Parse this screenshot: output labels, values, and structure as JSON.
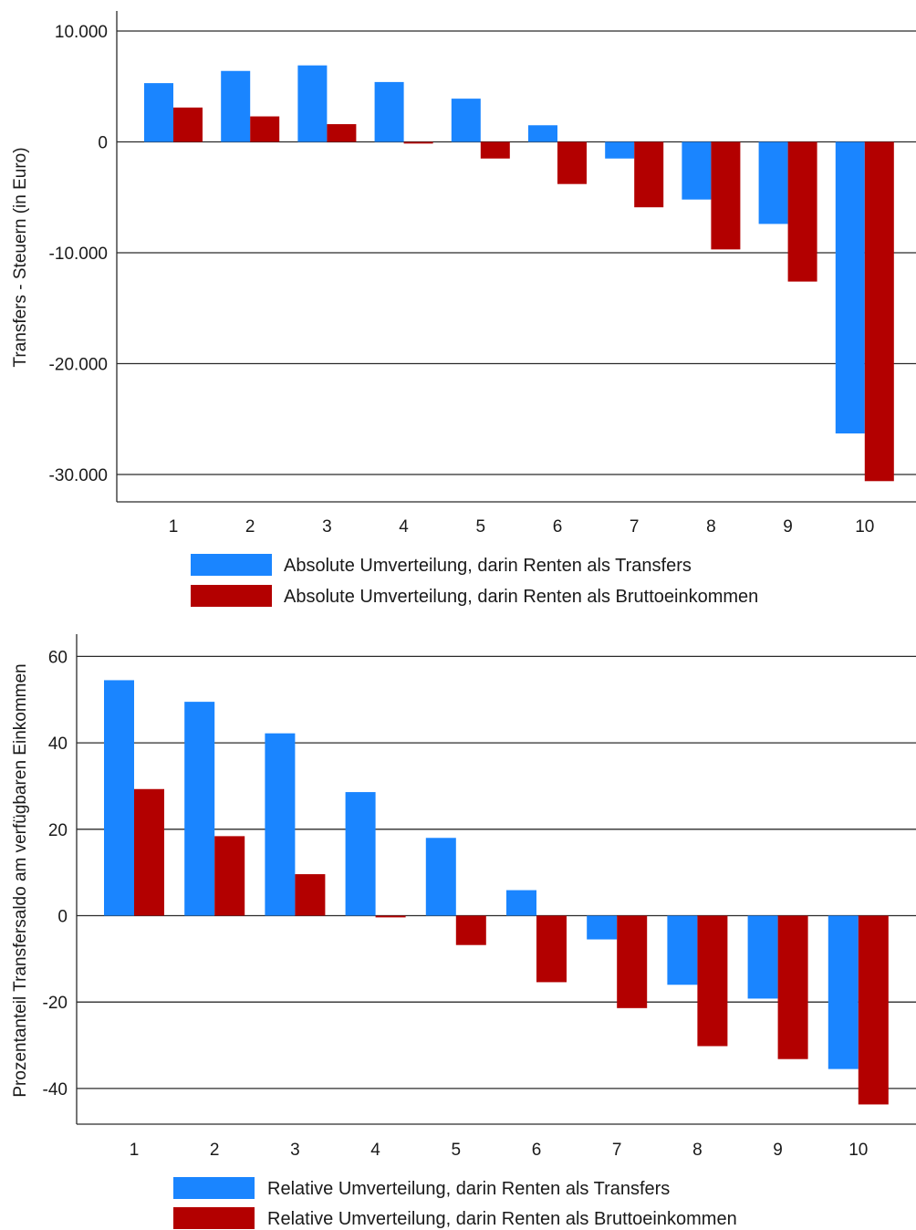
{
  "chart_data": [
    {
      "type": "bar",
      "ylabel": "Transfers - Steuern (in Euro)",
      "xlabel": "",
      "ylim": [
        -32500,
        11000
      ],
      "yticks": [
        10000,
        0,
        -10000,
        -20000,
        -30000
      ],
      "ytick_labels": [
        "10.000",
        "0",
        "-10.000",
        "-20.000",
        "-30.000"
      ],
      "grid": true,
      "legend_position": "bottom",
      "categories": [
        "1",
        "2",
        "3",
        "4",
        "5",
        "6",
        "7",
        "8",
        "9",
        "10"
      ],
      "series": [
        {
          "name": "Absolute Umverteilung, darin Renten als Transfers",
          "color": "#1a85ff",
          "values": [
            5300,
            6400,
            6900,
            5400,
            3900,
            1500,
            -1500,
            -5200,
            -7400,
            -26300
          ]
        },
        {
          "name": "Absolute Umverteilung, darin Renten als Bruttoeinkommen",
          "color": "#b30000",
          "values": [
            3100,
            2300,
            1600,
            -150,
            -1500,
            -3800,
            -5900,
            -9700,
            -12600,
            -30600
          ]
        }
      ]
    },
    {
      "type": "bar",
      "ylabel": "Prozentanteil Transfersaldo am verfügbaren Einkommen",
      "xlabel": "",
      "ylim": [
        -48,
        66
      ],
      "yticks": [
        60,
        40,
        20,
        0,
        -20,
        -40
      ],
      "ytick_labels": [
        "60",
        "40",
        "20",
        "0",
        "-20",
        "-40"
      ],
      "grid": true,
      "legend_position": "bottom",
      "categories": [
        "1",
        "2",
        "3",
        "4",
        "5",
        "6",
        "7",
        "8",
        "9",
        "10"
      ],
      "series": [
        {
          "name": "Relative Umverteilung, darin Renten als Transfers",
          "color": "#1a85ff",
          "values": [
            54.5,
            49.5,
            42.2,
            28.6,
            18.0,
            5.9,
            -5.5,
            -16.0,
            -19.2,
            -35.5
          ]
        },
        {
          "name": "Relative Umverteilung, darin Renten als Bruttoeinkommen",
          "color": "#b30000",
          "values": [
            29.3,
            18.4,
            9.6,
            -0.4,
            -6.8,
            -15.4,
            -21.4,
            -30.2,
            -33.2,
            -43.7
          ]
        }
      ]
    }
  ]
}
